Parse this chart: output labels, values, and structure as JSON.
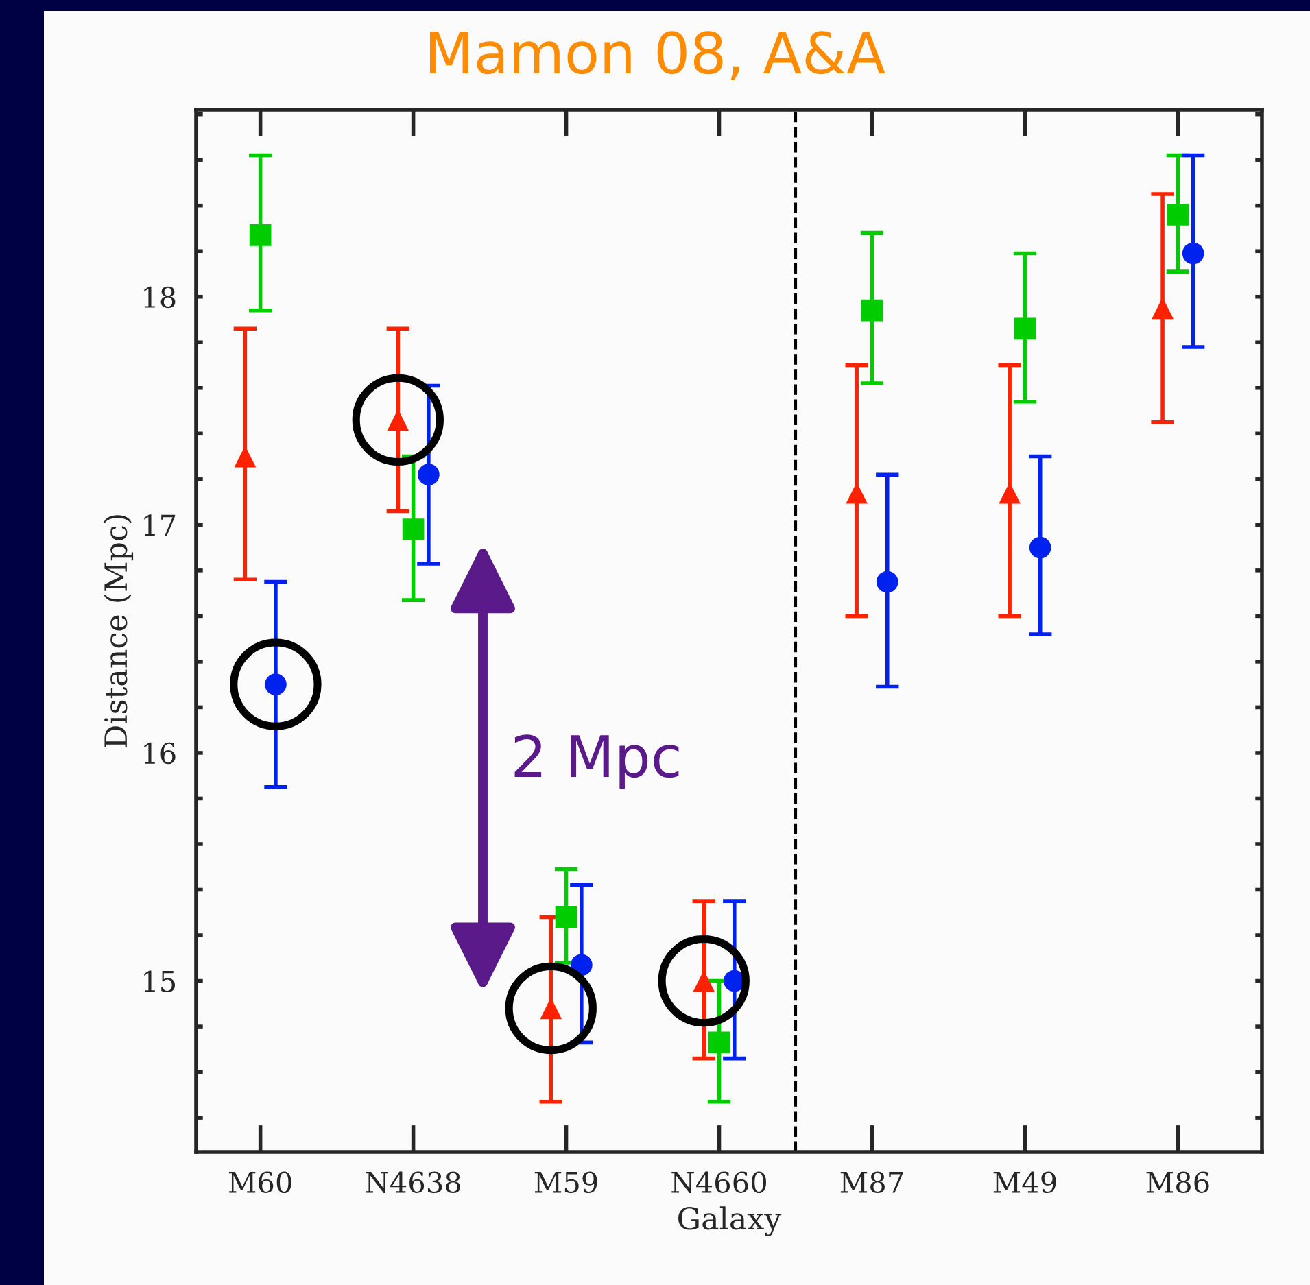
{
  "chart_data": {
    "type": "scatter",
    "title": "Mamon 08, A&A",
    "xlabel": "Galaxy",
    "ylabel": "Distance (Mpc)",
    "categories": [
      "M60",
      "N4638",
      "M59",
      "N4660",
      "M87",
      "M49",
      "M86"
    ],
    "series": [
      {
        "color": "#ff2200",
        "marker": "triangle",
        "values": [
          17.3,
          17.46,
          14.88,
          15.0,
          17.14,
          17.14,
          17.95
        ],
        "errors": [
          [
            16.76,
            17.86
          ],
          [
            17.06,
            17.86
          ],
          [
            14.47,
            15.28
          ],
          [
            14.66,
            15.35
          ],
          [
            16.6,
            17.7
          ],
          [
            16.6,
            17.7
          ],
          [
            17.45,
            18.45
          ]
        ]
      },
      {
        "color": "#00cc00",
        "marker": "square",
        "values": [
          18.27,
          16.98,
          15.28,
          14.73,
          17.94,
          17.86,
          18.36
        ],
        "errors": [
          [
            17.94,
            18.62
          ],
          [
            16.67,
            17.3
          ],
          [
            15.08,
            15.49
          ],
          [
            14.47,
            15.0
          ],
          [
            17.62,
            18.28
          ],
          [
            17.54,
            18.19
          ],
          [
            18.11,
            18.62
          ]
        ]
      },
      {
        "color": "#0022ee",
        "marker": "circle",
        "values": [
          16.3,
          17.22,
          15.07,
          15.0,
          16.75,
          16.9,
          18.19
        ],
        "errors": [
          [
            15.85,
            16.75
          ],
          [
            16.83,
            17.61
          ],
          [
            14.73,
            15.42
          ],
          [
            14.66,
            15.35
          ],
          [
            16.29,
            17.22
          ],
          [
            16.52,
            17.3
          ],
          [
            17.78,
            18.62
          ]
        ]
      }
    ],
    "ylim": [
      14.25,
      18.82
    ],
    "yticks": [
      {
        "value": 14.4,
        "label": null
      },
      {
        "value": 14.6,
        "label": null
      },
      {
        "value": 14.8,
        "label": null
      },
      15,
      {
        "value": 15.2,
        "label": null
      },
      {
        "value": 15.4,
        "label": null
      },
      {
        "value": 15.6,
        "label": null
      },
      {
        "value": 15.8,
        "label": null
      },
      16,
      {
        "value": 16.2,
        "label": null
      },
      {
        "value": 16.4,
        "label": null
      },
      {
        "value": 16.6,
        "label": null
      },
      {
        "value": 16.8,
        "label": null
      },
      17,
      {
        "value": 17.2,
        "label": null
      },
      {
        "value": 17.4,
        "label": null
      },
      {
        "value": 17.6,
        "label": null
      },
      {
        "value": 17.8,
        "label": null
      },
      18,
      {
        "value": 18.2,
        "label": null
      },
      {
        "value": 18.4,
        "label": null
      },
      {
        "value": 18.6,
        "label": null
      },
      {
        "value": 18.8,
        "label": null
      }
    ],
    "annotations": [
      "2 Mpc"
    ],
    "grid": false,
    "legend": false
  }
}
